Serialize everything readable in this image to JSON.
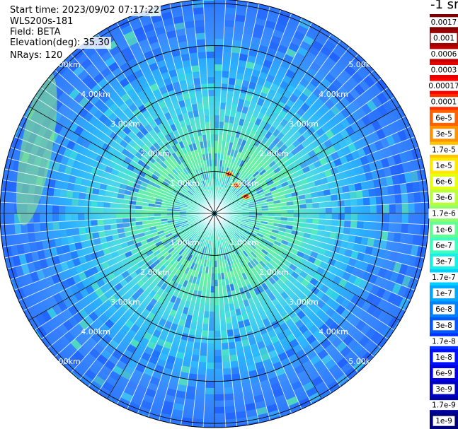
{
  "info": {
    "start_time": "Start time: 2023/09/02 07:17:22",
    "instrument": "WLS200s-181",
    "field": "Field: BETA",
    "elevation": "Elevation(deg): 35.30",
    "nrays": "NRays: 120"
  },
  "colorbar": {
    "unit_label": "-1 sr",
    "labels": [
      "0.0017",
      "0.001",
      "0.0006",
      "0.0003",
      "0.00017",
      "0.0001",
      "6e-5",
      "3e-5",
      "1.7e-5",
      "1e-5",
      "6e-6",
      "3e-6",
      "1.7e-6",
      "1e-6",
      "6e-7",
      "3e-7",
      "1.7e-7",
      "1e-7",
      "6e-8",
      "3e-8",
      "1.7e-8",
      "1e-8",
      "6e-9",
      "3e-9",
      "1.7e-9",
      "1e-9"
    ],
    "colors": [
      "#7f0000",
      "#a00000",
      "#c40000",
      "#e30000",
      "#ff0000",
      "#ff3000",
      "#ff6200",
      "#ff9400",
      "#ffc400",
      "#ffe800",
      "#e6ff10",
      "#b8ff40",
      "#8fff6a",
      "#63ff94",
      "#3dffbe",
      "#18f0e6",
      "#00d0ff",
      "#00a8ff",
      "#0080ff",
      "#0058ff",
      "#0030ff",
      "#0010ff",
      "#0000e0",
      "#0000c0",
      "#0000a0",
      "#00007f"
    ]
  },
  "ring_labels": [
    "1.00km",
    "2.00km",
    "3.00km",
    "4.00km",
    "5.00km"
  ],
  "chart_data": {
    "type": "heatmap",
    "subtype": "lidar PPI polar scan",
    "field": "BETA",
    "elevation_deg": 35.3,
    "n_rays": 120,
    "range_rings_km": [
      1,
      2,
      3,
      4,
      5
    ],
    "max_range_km": 5.1,
    "spoke_interval_deg": 30,
    "radial_profile_rgb": [
      {
        "range_km": 0.0,
        "color": "#2bd4ff"
      },
      {
        "range_km": 0.5,
        "color": "#3ae8c8"
      },
      {
        "range_km": 1.5,
        "color": "#6af2a0"
      },
      {
        "range_km": 2.5,
        "color": "#4ad8e8"
      },
      {
        "range_km": 3.5,
        "color": "#2ab0ff"
      },
      {
        "range_km": 4.3,
        "color": "#3a8cff"
      },
      {
        "range_km": 5.0,
        "color": "#2e7aff"
      }
    ],
    "features": [
      {
        "note": "high backscatter patches",
        "azimuth_deg": 20,
        "range_km": 1.0
      },
      {
        "note": "high backscatter patches",
        "azimuth_deg": 38,
        "range_km": 0.85
      },
      {
        "note": "high backscatter patches",
        "azimuth_deg": 62,
        "range_km": 0.85
      },
      {
        "note": "greenish band",
        "azimuth_deg": 290,
        "range_km": 4.5
      }
    ]
  }
}
